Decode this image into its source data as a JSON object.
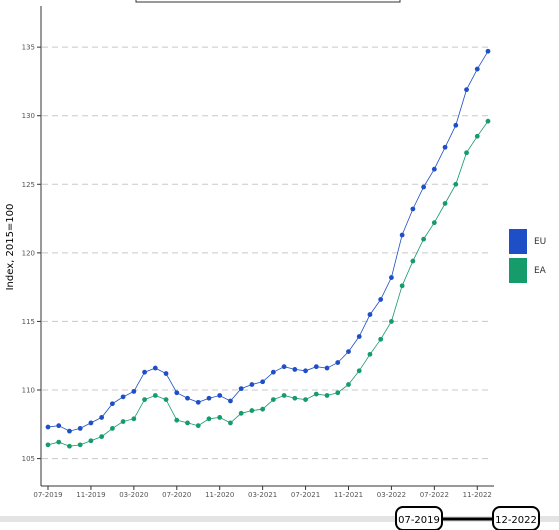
{
  "chart_data": {
    "type": "line",
    "title": "",
    "xlabel": "",
    "ylabel": "Index, 2015=100",
    "ylim": [
      103,
      138
    ],
    "yticks": [
      105,
      110,
      115,
      120,
      125,
      130,
      135
    ],
    "grid": "horizontal dashed",
    "legend_placement": "right",
    "x": [
      "07-2019",
      "08-2019",
      "09-2019",
      "10-2019",
      "11-2019",
      "12-2019",
      "01-2020",
      "02-2020",
      "03-2020",
      "04-2020",
      "05-2020",
      "06-2020",
      "07-2020",
      "08-2020",
      "09-2020",
      "10-2020",
      "11-2020",
      "12-2020",
      "01-2021",
      "02-2021",
      "03-2021",
      "04-2021",
      "05-2021",
      "06-2021",
      "07-2021",
      "08-2021",
      "09-2021",
      "10-2021",
      "11-2021",
      "12-2021",
      "01-2022",
      "02-2022",
      "03-2022",
      "04-2022",
      "05-2022",
      "06-2022",
      "07-2022",
      "08-2022",
      "09-2022",
      "10-2022",
      "11-2022",
      "12-2022"
    ],
    "xtick_labels": [
      "07-2019",
      "11-2019",
      "03-2020",
      "07-2020",
      "11-2020",
      "03-2021",
      "07-2021",
      "11-2021",
      "03-2022",
      "07-2022",
      "11-2022"
    ],
    "series": [
      {
        "name": "EU",
        "color": "#1f4fc6",
        "values": [
          107.3,
          107.4,
          107.0,
          107.2,
          107.6,
          108.0,
          109.0,
          109.5,
          109.9,
          111.3,
          111.6,
          111.2,
          109.8,
          109.4,
          109.1,
          109.4,
          109.6,
          109.2,
          110.1,
          110.4,
          110.6,
          111.3,
          111.7,
          111.5,
          111.4,
          111.7,
          111.6,
          112.0,
          112.8,
          113.9,
          115.5,
          116.6,
          118.2,
          121.3,
          123.2,
          124.8,
          126.1,
          127.7,
          129.3,
          131.9,
          133.4,
          134.7
        ]
      },
      {
        "name": "EA",
        "color": "#169b6b",
        "values": [
          106.0,
          106.2,
          105.9,
          106.0,
          106.3,
          106.6,
          107.2,
          107.7,
          107.9,
          109.3,
          109.6,
          109.3,
          107.8,
          107.6,
          107.4,
          107.9,
          108.0,
          107.6,
          108.3,
          108.5,
          108.6,
          109.3,
          109.6,
          109.4,
          109.3,
          109.7,
          109.6,
          109.8,
          110.4,
          111.4,
          112.6,
          113.7,
          115.0,
          117.6,
          119.4,
          121.0,
          122.2,
          123.6,
          125.0,
          127.3,
          128.5,
          129.6
        ]
      }
    ]
  },
  "slider": {
    "start_label": "07-2019",
    "end_label": "12-2022"
  }
}
